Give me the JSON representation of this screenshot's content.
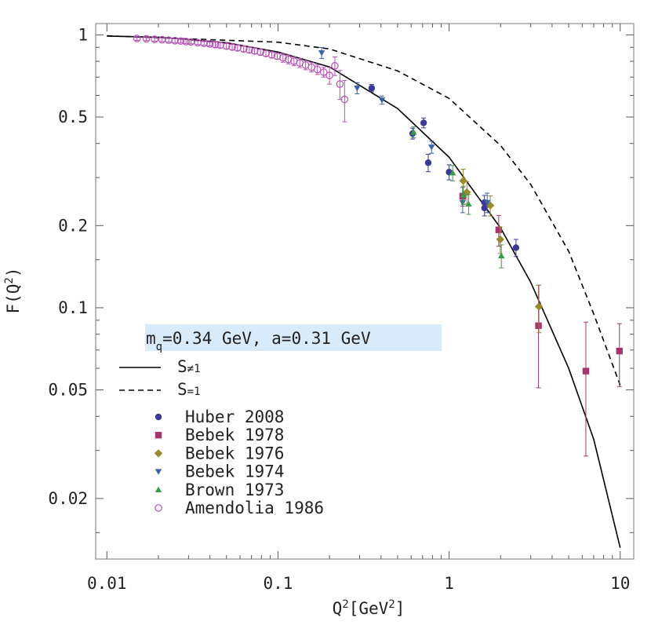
{
  "chart_data": {
    "type": "scatter",
    "xscale": "log",
    "yscale": "log",
    "xlim": [
      0.0086,
      12
    ],
    "ylim": [
      0.012,
      1.1
    ],
    "xticks": [
      0.01,
      0.1,
      1,
      10
    ],
    "yticks": [
      0.02,
      0.05,
      0.1,
      0.2,
      0.5,
      1
    ],
    "xminorticks": [
      0.02,
      0.03,
      0.04,
      0.05,
      0.06,
      0.07,
      0.08,
      0.09,
      0.2,
      0.3,
      0.4,
      0.5,
      0.6,
      0.7,
      0.8,
      0.9,
      2,
      3,
      4,
      5,
      6,
      7,
      8,
      9
    ],
    "yminorticks": [
      0.015,
      0.03,
      0.04,
      0.06,
      0.07,
      0.08,
      0.09,
      0.15,
      0.3,
      0.4,
      0.6,
      0.7,
      0.8,
      0.9
    ],
    "x_label": [
      "Q",
      "2",
      "[GeV",
      "2",
      "]"
    ],
    "y_label": [
      "F(Q",
      "2",
      ")"
    ],
    "annotation": [
      "m",
      "q",
      "=0.34 GeV, a=0.31 GeV"
    ],
    "annotation_color": "#d7ebfa",
    "curves": [
      {
        "label": "S",
        "label_sub": "≠1",
        "style": "solid",
        "color": "#000000",
        "x": [
          0.01,
          0.02,
          0.05,
          0.1,
          0.2,
          0.5,
          1,
          2,
          3,
          5,
          7,
          10
        ],
        "values": [
          0.99,
          0.98,
          0.936,
          0.865,
          0.763,
          0.537,
          0.356,
          0.196,
          0.124,
          0.06,
          0.033,
          0.0132
        ]
      },
      {
        "label": "S",
        "label_sub": "=1",
        "style": "dashed",
        "color": "#000000",
        "x": [
          0.01,
          0.1,
          0.2,
          0.5,
          1,
          2,
          3,
          5,
          7,
          10
        ],
        "values": [
          0.992,
          0.94,
          0.888,
          0.738,
          0.585,
          0.393,
          0.283,
          0.161,
          0.095,
          0.052
        ]
      }
    ],
    "series": [
      {
        "name": "Huber 2008",
        "color": "#3a3a96",
        "marker": "circle",
        "x": [
          0.353,
          0.612,
          0.71,
          0.755,
          1.0,
          1.61,
          1.61,
          2.46
        ],
        "values": [
          0.638,
          0.435,
          0.476,
          0.34,
          0.314,
          0.243,
          0.232,
          0.166
        ],
        "errors": [
          0.02,
          0.02,
          0.02,
          0.025,
          0.02,
          0.015,
          0.015,
          0.012
        ]
      },
      {
        "name": "Bebek 1978",
        "color": "#a3366d",
        "marker": "square",
        "x": [
          1.2,
          1.95,
          3.33,
          6.3,
          9.9
        ],
        "values": [
          0.256,
          0.193,
          0.0859,
          0.0586,
          0.0694
        ],
        "errors": [
          0.02,
          0.025,
          0.035,
          0.03,
          0.018
        ]
      },
      {
        "name": "Bebek 1976",
        "color": "#998a2b",
        "marker": "diamond",
        "x": [
          1.21,
          1.27,
          1.74,
          1.99,
          3.35
        ],
        "values": [
          0.292,
          0.265,
          0.237,
          0.178,
          0.101
        ],
        "errors": [
          0.03,
          0.025,
          0.02,
          0.02,
          0.02
        ]
      },
      {
        "name": "Bebek 1974",
        "color": "#3b62a6",
        "marker": "triangle-down",
        "x": [
          0.18,
          0.29,
          0.405,
          0.79,
          1.2,
          1.67
        ],
        "values": [
          0.859,
          0.638,
          0.577,
          0.388,
          0.243,
          0.243
        ],
        "errors": [
          0.04,
          0.03,
          0.02,
          0.02,
          0.02,
          0.02
        ]
      },
      {
        "name": "Brown 1973",
        "color": "#3a9a4a",
        "marker": "triangle-up",
        "x": [
          0.62,
          1.05,
          1.21,
          1.3,
          2.02
        ],
        "values": [
          0.44,
          0.312,
          0.259,
          0.24,
          0.155
        ],
        "errors": [
          0.02,
          0.02,
          0.02,
          0.02,
          0.015
        ]
      },
      {
        "name": "Amendolia 1986",
        "color": "#b452b4",
        "marker": "open-circle",
        "x": [
          0.015,
          0.017,
          0.019,
          0.021,
          0.023,
          0.025,
          0.027,
          0.029,
          0.031,
          0.034,
          0.037,
          0.04,
          0.043,
          0.046,
          0.05,
          0.054,
          0.058,
          0.063,
          0.068,
          0.073,
          0.079,
          0.085,
          0.092,
          0.099,
          0.107,
          0.115,
          0.124,
          0.134,
          0.145,
          0.157,
          0.17,
          0.185,
          0.2,
          0.215,
          0.23,
          0.245
        ],
        "values": [
          0.97,
          0.967,
          0.963,
          0.96,
          0.956,
          0.952,
          0.949,
          0.945,
          0.942,
          0.936,
          0.931,
          0.926,
          0.921,
          0.916,
          0.909,
          0.902,
          0.896,
          0.888,
          0.88,
          0.873,
          0.864,
          0.855,
          0.845,
          0.835,
          0.824,
          0.813,
          0.801,
          0.789,
          0.775,
          0.761,
          0.746,
          0.73,
          0.71,
          0.77,
          0.66,
          0.58
        ],
        "errors": [
          0.015,
          0.015,
          0.015,
          0.015,
          0.015,
          0.015,
          0.015,
          0.015,
          0.015,
          0.015,
          0.015,
          0.015,
          0.02,
          0.02,
          0.02,
          0.02,
          0.02,
          0.02,
          0.02,
          0.02,
          0.02,
          0.02,
          0.02,
          0.02,
          0.03,
          0.03,
          0.03,
          0.03,
          0.03,
          0.03,
          0.03,
          0.03,
          0.05,
          0.06,
          0.08,
          0.1
        ]
      }
    ]
  }
}
